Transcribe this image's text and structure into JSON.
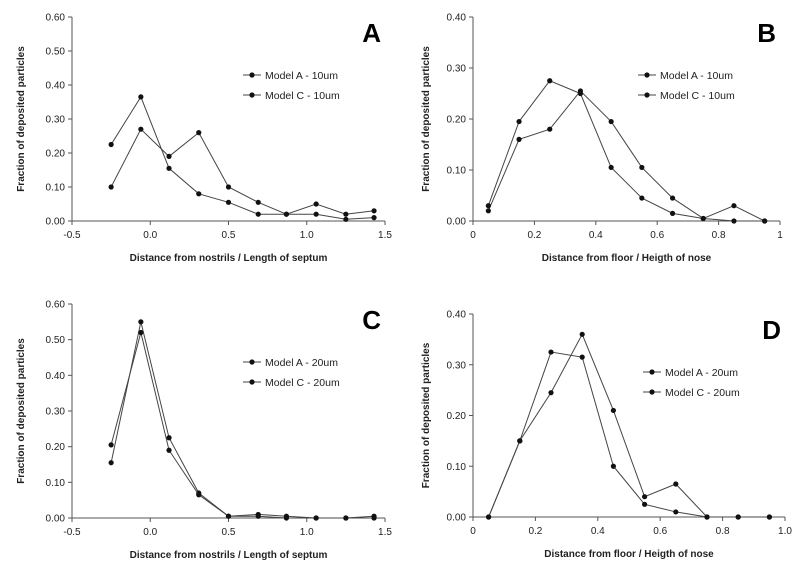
{
  "chart_data": [
    {
      "type": "line",
      "panel_label": "A",
      "xlabel": "Distance from nostrils / Length of septum",
      "ylabel": "Fraction of deposited particles",
      "xlim": [
        -0.5,
        1.5
      ],
      "ylim": [
        0,
        0.6
      ],
      "xticks": [
        "-0.5",
        "0.0",
        "0.5",
        "1.0",
        "1.5"
      ],
      "yticks": [
        "0.00",
        "0.10",
        "0.20",
        "0.30",
        "0.40",
        "0.50",
        "0.60"
      ],
      "legend_position": "top-right",
      "series": [
        {
          "name": "Model A - 10um",
          "x": [
            -0.25,
            -0.06,
            0.12,
            0.31,
            0.5,
            0.69,
            0.87,
            1.06,
            1.25,
            1.43
          ],
          "y": [
            0.1,
            0.27,
            0.19,
            0.26,
            0.1,
            0.055,
            0.02,
            0.05,
            0.02,
            0.03
          ]
        },
        {
          "name": "Model C - 10um",
          "x": [
            -0.25,
            -0.06,
            0.12,
            0.31,
            0.5,
            0.69,
            0.87,
            1.06,
            1.25,
            1.43
          ],
          "y": [
            0.225,
            0.365,
            0.155,
            0.08,
            0.055,
            0.02,
            0.02,
            0.02,
            0.005,
            0.01
          ]
        }
      ]
    },
    {
      "type": "line",
      "panel_label": "B",
      "xlabel": "Distance from floor / Heigth of nose",
      "ylabel": "Fraction of deposited particles",
      "xlim": [
        0,
        1.0
      ],
      "ylim": [
        0,
        0.4
      ],
      "xticks": [
        "0",
        "0.2",
        "0.4",
        "0.6",
        "0.8",
        "1"
      ],
      "yticks": [
        "0.00",
        "0.10",
        "0.20",
        "0.30",
        "0.40"
      ],
      "legend_position": "top-right",
      "series": [
        {
          "name": "Model A - 10um",
          "x": [
            0.05,
            0.15,
            0.25,
            0.35,
            0.45,
            0.55,
            0.65,
            0.75,
            0.85,
            0.95
          ],
          "y": [
            0.02,
            0.16,
            0.18,
            0.255,
            0.195,
            0.105,
            0.045,
            0.005,
            0.03,
            0.0
          ]
        },
        {
          "name": "Model C - 10um",
          "x": [
            0.05,
            0.15,
            0.25,
            0.35,
            0.45,
            0.55,
            0.65,
            0.75,
            0.85,
            0.95
          ],
          "y": [
            0.03,
            0.195,
            0.275,
            0.25,
            0.105,
            0.045,
            0.015,
            0.005,
            0.0,
            0.0
          ]
        }
      ]
    },
    {
      "type": "line",
      "panel_label": "C",
      "xlabel": "Distance from nostrils / Length of septum",
      "ylabel": "Fraction of deposited particles",
      "xlim": [
        -0.5,
        1.5
      ],
      "ylim": [
        0,
        0.6
      ],
      "xticks": [
        "-0.5",
        "0.0",
        "0.5",
        "1.0",
        "1.5"
      ],
      "yticks": [
        "0.00",
        "0.10",
        "0.20",
        "0.30",
        "0.40",
        "0.50",
        "0.60"
      ],
      "legend_position": "top-right",
      "series": [
        {
          "name": "Model A - 20um",
          "x": [
            -0.25,
            -0.06,
            0.12,
            0.31,
            0.5,
            0.69,
            0.87,
            1.06,
            1.25,
            1.43
          ],
          "y": [
            0.155,
            0.55,
            0.225,
            0.07,
            0.005,
            0.005,
            0.0,
            0.0,
            0.0,
            0.005
          ]
        },
        {
          "name": "Model C - 20um",
          "x": [
            -0.25,
            -0.06,
            0.12,
            0.31,
            0.5,
            0.69,
            0.87,
            1.06,
            1.25,
            1.43
          ],
          "y": [
            0.205,
            0.52,
            0.19,
            0.065,
            0.005,
            0.01,
            0.005,
            0.0,
            0.0,
            0.0
          ]
        }
      ]
    },
    {
      "type": "line",
      "panel_label": "D",
      "xlabel": "Distance from floor / Heigth of nose",
      "ylabel": "Fraction of deposited particles",
      "xlim": [
        0,
        1.0
      ],
      "ylim": [
        0,
        0.4
      ],
      "xticks": [
        "0",
        "0.2",
        "0.4",
        "0.6",
        "0.8",
        "1.0"
      ],
      "yticks": [
        "0.00",
        "0.10",
        "0.20",
        "0.30",
        "0.40"
      ],
      "legend_position": "top-right",
      "series": [
        {
          "name": "Model A - 20um",
          "x": [
            0.05,
            0.15,
            0.25,
            0.35,
            0.45,
            0.55,
            0.65,
            0.75,
            0.85,
            0.95
          ],
          "y": [
            0.0,
            0.15,
            0.245,
            0.36,
            0.21,
            0.04,
            0.065,
            0.0,
            0.0,
            0.0
          ]
        },
        {
          "name": "Model C - 20um",
          "x": [
            0.05,
            0.15,
            0.25,
            0.35,
            0.45,
            0.55,
            0.65,
            0.75,
            0.85,
            0.95
          ],
          "y": [
            0.0,
            0.15,
            0.325,
            0.315,
            0.1,
            0.025,
            0.01,
            0.0,
            0.0,
            0.0
          ]
        }
      ]
    }
  ]
}
